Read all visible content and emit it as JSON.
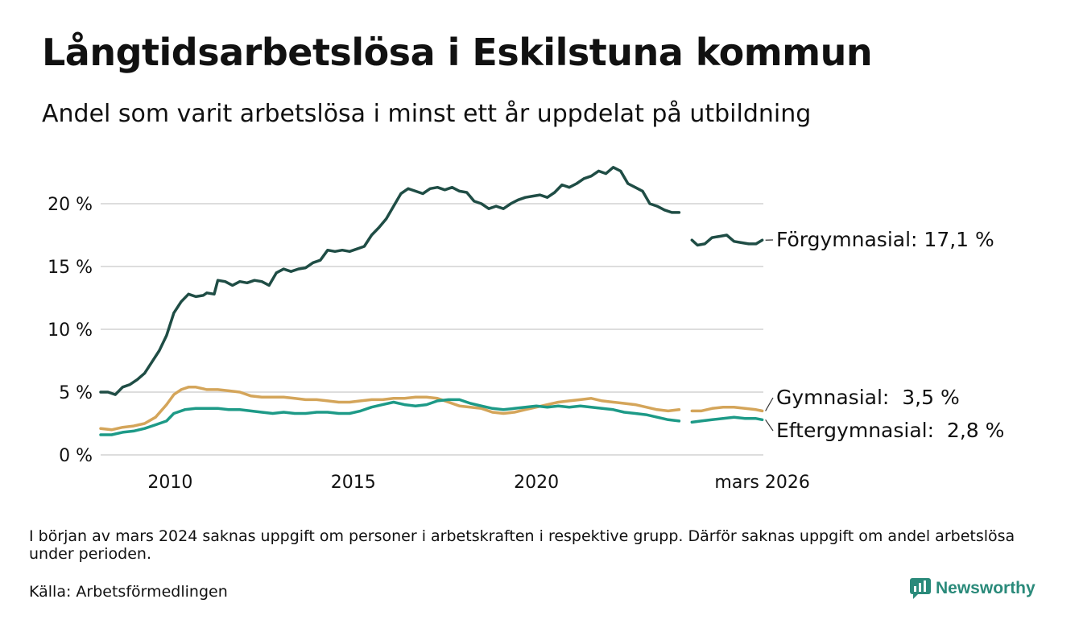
{
  "title": "Långtidsarbetslösa i Eskilstuna kommun",
  "subtitle": "Andel som varit arbetslösa i minst ett år uppdelat på utbildning",
  "note": "I början av mars 2024 saknas uppgift om personer i arbetskraften i respektive grupp. Därför saknas uppgift om andel arbetslösa under perioden.",
  "source": "Källa: Arbetsförmedlingen",
  "brand": "Newsworthy",
  "chart_data": {
    "type": "line",
    "title": "Långtidsarbetslösa i Eskilstuna kommun",
    "xlabel": "",
    "ylabel": "",
    "xlim": [
      2008.1,
      2026.2
    ],
    "ylim": [
      0,
      22
    ],
    "y_ticks": [
      0,
      5,
      10,
      15,
      20
    ],
    "y_tick_labels": [
      "0 %",
      "5 %",
      "10 %",
      "15 %",
      "20 %"
    ],
    "x_ticks": [
      2010,
      2015,
      2020,
      2026.17
    ],
    "x_tick_labels": [
      "2010",
      "2015",
      "2020",
      "mars 2026"
    ],
    "gap": [
      2023.9,
      2024.25
    ],
    "series": [
      {
        "name": "Förgymnasial",
        "end_label": "Förgymnasial: 17,1 %",
        "color": "#1f4d45",
        "points": [
          [
            2008.1,
            5.0
          ],
          [
            2008.3,
            5.0
          ],
          [
            2008.5,
            4.8
          ],
          [
            2008.7,
            5.4
          ],
          [
            2008.9,
            5.6
          ],
          [
            2009.1,
            6.0
          ],
          [
            2009.3,
            6.5
          ],
          [
            2009.5,
            7.4
          ],
          [
            2009.7,
            8.3
          ],
          [
            2009.9,
            9.5
          ],
          [
            2010.1,
            11.3
          ],
          [
            2010.3,
            12.2
          ],
          [
            2010.5,
            12.8
          ],
          [
            2010.7,
            12.6
          ],
          [
            2010.9,
            12.7
          ],
          [
            2011.0,
            12.9
          ],
          [
            2011.2,
            12.8
          ],
          [
            2011.3,
            13.9
          ],
          [
            2011.5,
            13.8
          ],
          [
            2011.7,
            13.5
          ],
          [
            2011.9,
            13.8
          ],
          [
            2012.1,
            13.7
          ],
          [
            2012.3,
            13.9
          ],
          [
            2012.5,
            13.8
          ],
          [
            2012.7,
            13.5
          ],
          [
            2012.9,
            14.5
          ],
          [
            2013.1,
            14.8
          ],
          [
            2013.3,
            14.6
          ],
          [
            2013.5,
            14.8
          ],
          [
            2013.7,
            14.9
          ],
          [
            2013.9,
            15.3
          ],
          [
            2014.1,
            15.5
          ],
          [
            2014.3,
            16.3
          ],
          [
            2014.5,
            16.2
          ],
          [
            2014.7,
            16.3
          ],
          [
            2014.9,
            16.2
          ],
          [
            2015.1,
            16.4
          ],
          [
            2015.3,
            16.6
          ],
          [
            2015.5,
            17.5
          ],
          [
            2015.7,
            18.1
          ],
          [
            2015.9,
            18.8
          ],
          [
            2016.1,
            19.8
          ],
          [
            2016.3,
            20.8
          ],
          [
            2016.5,
            21.2
          ],
          [
            2016.7,
            21.0
          ],
          [
            2016.9,
            20.8
          ],
          [
            2017.1,
            21.2
          ],
          [
            2017.3,
            21.3
          ],
          [
            2017.5,
            21.1
          ],
          [
            2017.7,
            21.3
          ],
          [
            2017.9,
            21.0
          ],
          [
            2018.1,
            20.9
          ],
          [
            2018.3,
            20.2
          ],
          [
            2018.5,
            20.0
          ],
          [
            2018.7,
            19.6
          ],
          [
            2018.9,
            19.8
          ],
          [
            2019.1,
            19.6
          ],
          [
            2019.3,
            20.0
          ],
          [
            2019.5,
            20.3
          ],
          [
            2019.7,
            20.5
          ],
          [
            2019.9,
            20.6
          ],
          [
            2020.1,
            20.7
          ],
          [
            2020.3,
            20.5
          ],
          [
            2020.5,
            20.9
          ],
          [
            2020.7,
            21.5
          ],
          [
            2020.9,
            21.3
          ],
          [
            2021.1,
            21.6
          ],
          [
            2021.3,
            22.0
          ],
          [
            2021.5,
            22.2
          ],
          [
            2021.7,
            22.6
          ],
          [
            2021.9,
            22.4
          ],
          [
            2022.1,
            22.9
          ],
          [
            2022.3,
            22.6
          ],
          [
            2022.5,
            21.6
          ],
          [
            2022.7,
            21.3
          ],
          [
            2022.9,
            21.0
          ],
          [
            2023.1,
            20.0
          ],
          [
            2023.3,
            19.8
          ],
          [
            2023.5,
            19.5
          ],
          [
            2023.7,
            19.3
          ],
          [
            2023.9,
            19.3
          ],
          [
            2024.25,
            17.1
          ],
          [
            2024.4,
            16.7
          ],
          [
            2024.6,
            16.8
          ],
          [
            2024.8,
            17.3
          ],
          [
            2025.0,
            17.4
          ],
          [
            2025.2,
            17.5
          ],
          [
            2025.4,
            17.0
          ],
          [
            2025.6,
            16.9
          ],
          [
            2025.8,
            16.8
          ],
          [
            2026.0,
            16.8
          ],
          [
            2026.17,
            17.1
          ]
        ]
      },
      {
        "name": "Gymnasial",
        "end_label": "Gymnasial:  3,5 %",
        "color": "#d4a55a",
        "points": [
          [
            2008.1,
            2.1
          ],
          [
            2008.4,
            2.0
          ],
          [
            2008.7,
            2.2
          ],
          [
            2009.0,
            2.3
          ],
          [
            2009.3,
            2.5
          ],
          [
            2009.6,
            3.0
          ],
          [
            2009.9,
            4.0
          ],
          [
            2010.1,
            4.8
          ],
          [
            2010.3,
            5.2
          ],
          [
            2010.5,
            5.4
          ],
          [
            2010.7,
            5.4
          ],
          [
            2011.0,
            5.2
          ],
          [
            2011.3,
            5.2
          ],
          [
            2011.6,
            5.1
          ],
          [
            2011.9,
            5.0
          ],
          [
            2012.2,
            4.7
          ],
          [
            2012.5,
            4.6
          ],
          [
            2012.8,
            4.6
          ],
          [
            2013.1,
            4.6
          ],
          [
            2013.4,
            4.5
          ],
          [
            2013.7,
            4.4
          ],
          [
            2014.0,
            4.4
          ],
          [
            2014.3,
            4.3
          ],
          [
            2014.6,
            4.2
          ],
          [
            2014.9,
            4.2
          ],
          [
            2015.2,
            4.3
          ],
          [
            2015.5,
            4.4
          ],
          [
            2015.8,
            4.4
          ],
          [
            2016.1,
            4.5
          ],
          [
            2016.4,
            4.5
          ],
          [
            2016.7,
            4.6
          ],
          [
            2017.0,
            4.6
          ],
          [
            2017.3,
            4.5
          ],
          [
            2017.6,
            4.2
          ],
          [
            2017.9,
            3.9
          ],
          [
            2018.2,
            3.8
          ],
          [
            2018.5,
            3.7
          ],
          [
            2018.8,
            3.4
          ],
          [
            2019.1,
            3.3
          ],
          [
            2019.4,
            3.4
          ],
          [
            2019.7,
            3.6
          ],
          [
            2020.0,
            3.8
          ],
          [
            2020.3,
            4.0
          ],
          [
            2020.6,
            4.2
          ],
          [
            2020.9,
            4.3
          ],
          [
            2021.2,
            4.4
          ],
          [
            2021.5,
            4.5
          ],
          [
            2021.8,
            4.3
          ],
          [
            2022.1,
            4.2
          ],
          [
            2022.4,
            4.1
          ],
          [
            2022.7,
            4.0
          ],
          [
            2023.0,
            3.8
          ],
          [
            2023.3,
            3.6
          ],
          [
            2023.6,
            3.5
          ],
          [
            2023.9,
            3.6
          ],
          [
            2024.25,
            3.5
          ],
          [
            2024.5,
            3.5
          ],
          [
            2024.8,
            3.7
          ],
          [
            2025.1,
            3.8
          ],
          [
            2025.4,
            3.8
          ],
          [
            2025.7,
            3.7
          ],
          [
            2026.0,
            3.6
          ],
          [
            2026.17,
            3.5
          ]
        ]
      },
      {
        "name": "Eftergymnasial",
        "end_label": "Eftergymnasial:  2,8 %",
        "color": "#1d9a87",
        "points": [
          [
            2008.1,
            1.6
          ],
          [
            2008.4,
            1.6
          ],
          [
            2008.7,
            1.8
          ],
          [
            2009.0,
            1.9
          ],
          [
            2009.3,
            2.1
          ],
          [
            2009.6,
            2.4
          ],
          [
            2009.9,
            2.7
          ],
          [
            2010.1,
            3.3
          ],
          [
            2010.4,
            3.6
          ],
          [
            2010.7,
            3.7
          ],
          [
            2011.0,
            3.7
          ],
          [
            2011.3,
            3.7
          ],
          [
            2011.6,
            3.6
          ],
          [
            2011.9,
            3.6
          ],
          [
            2012.2,
            3.5
          ],
          [
            2012.5,
            3.4
          ],
          [
            2012.8,
            3.3
          ],
          [
            2013.1,
            3.4
          ],
          [
            2013.4,
            3.3
          ],
          [
            2013.7,
            3.3
          ],
          [
            2014.0,
            3.4
          ],
          [
            2014.3,
            3.4
          ],
          [
            2014.6,
            3.3
          ],
          [
            2014.9,
            3.3
          ],
          [
            2015.2,
            3.5
          ],
          [
            2015.5,
            3.8
          ],
          [
            2015.8,
            4.0
          ],
          [
            2016.1,
            4.2
          ],
          [
            2016.4,
            4.0
          ],
          [
            2016.7,
            3.9
          ],
          [
            2017.0,
            4.0
          ],
          [
            2017.3,
            4.3
          ],
          [
            2017.6,
            4.4
          ],
          [
            2017.9,
            4.4
          ],
          [
            2018.2,
            4.1
          ],
          [
            2018.5,
            3.9
          ],
          [
            2018.8,
            3.7
          ],
          [
            2019.1,
            3.6
          ],
          [
            2019.4,
            3.7
          ],
          [
            2019.7,
            3.8
          ],
          [
            2020.0,
            3.9
          ],
          [
            2020.3,
            3.8
          ],
          [
            2020.6,
            3.9
          ],
          [
            2020.9,
            3.8
          ],
          [
            2021.2,
            3.9
          ],
          [
            2021.5,
            3.8
          ],
          [
            2021.8,
            3.7
          ],
          [
            2022.1,
            3.6
          ],
          [
            2022.4,
            3.4
          ],
          [
            2022.7,
            3.3
          ],
          [
            2023.0,
            3.2
          ],
          [
            2023.3,
            3.0
          ],
          [
            2023.6,
            2.8
          ],
          [
            2023.9,
            2.7
          ],
          [
            2024.25,
            2.6
          ],
          [
            2024.5,
            2.7
          ],
          [
            2024.8,
            2.8
          ],
          [
            2025.1,
            2.9
          ],
          [
            2025.4,
            3.0
          ],
          [
            2025.7,
            2.9
          ],
          [
            2026.0,
            2.9
          ],
          [
            2026.17,
            2.8
          ]
        ]
      }
    ]
  }
}
